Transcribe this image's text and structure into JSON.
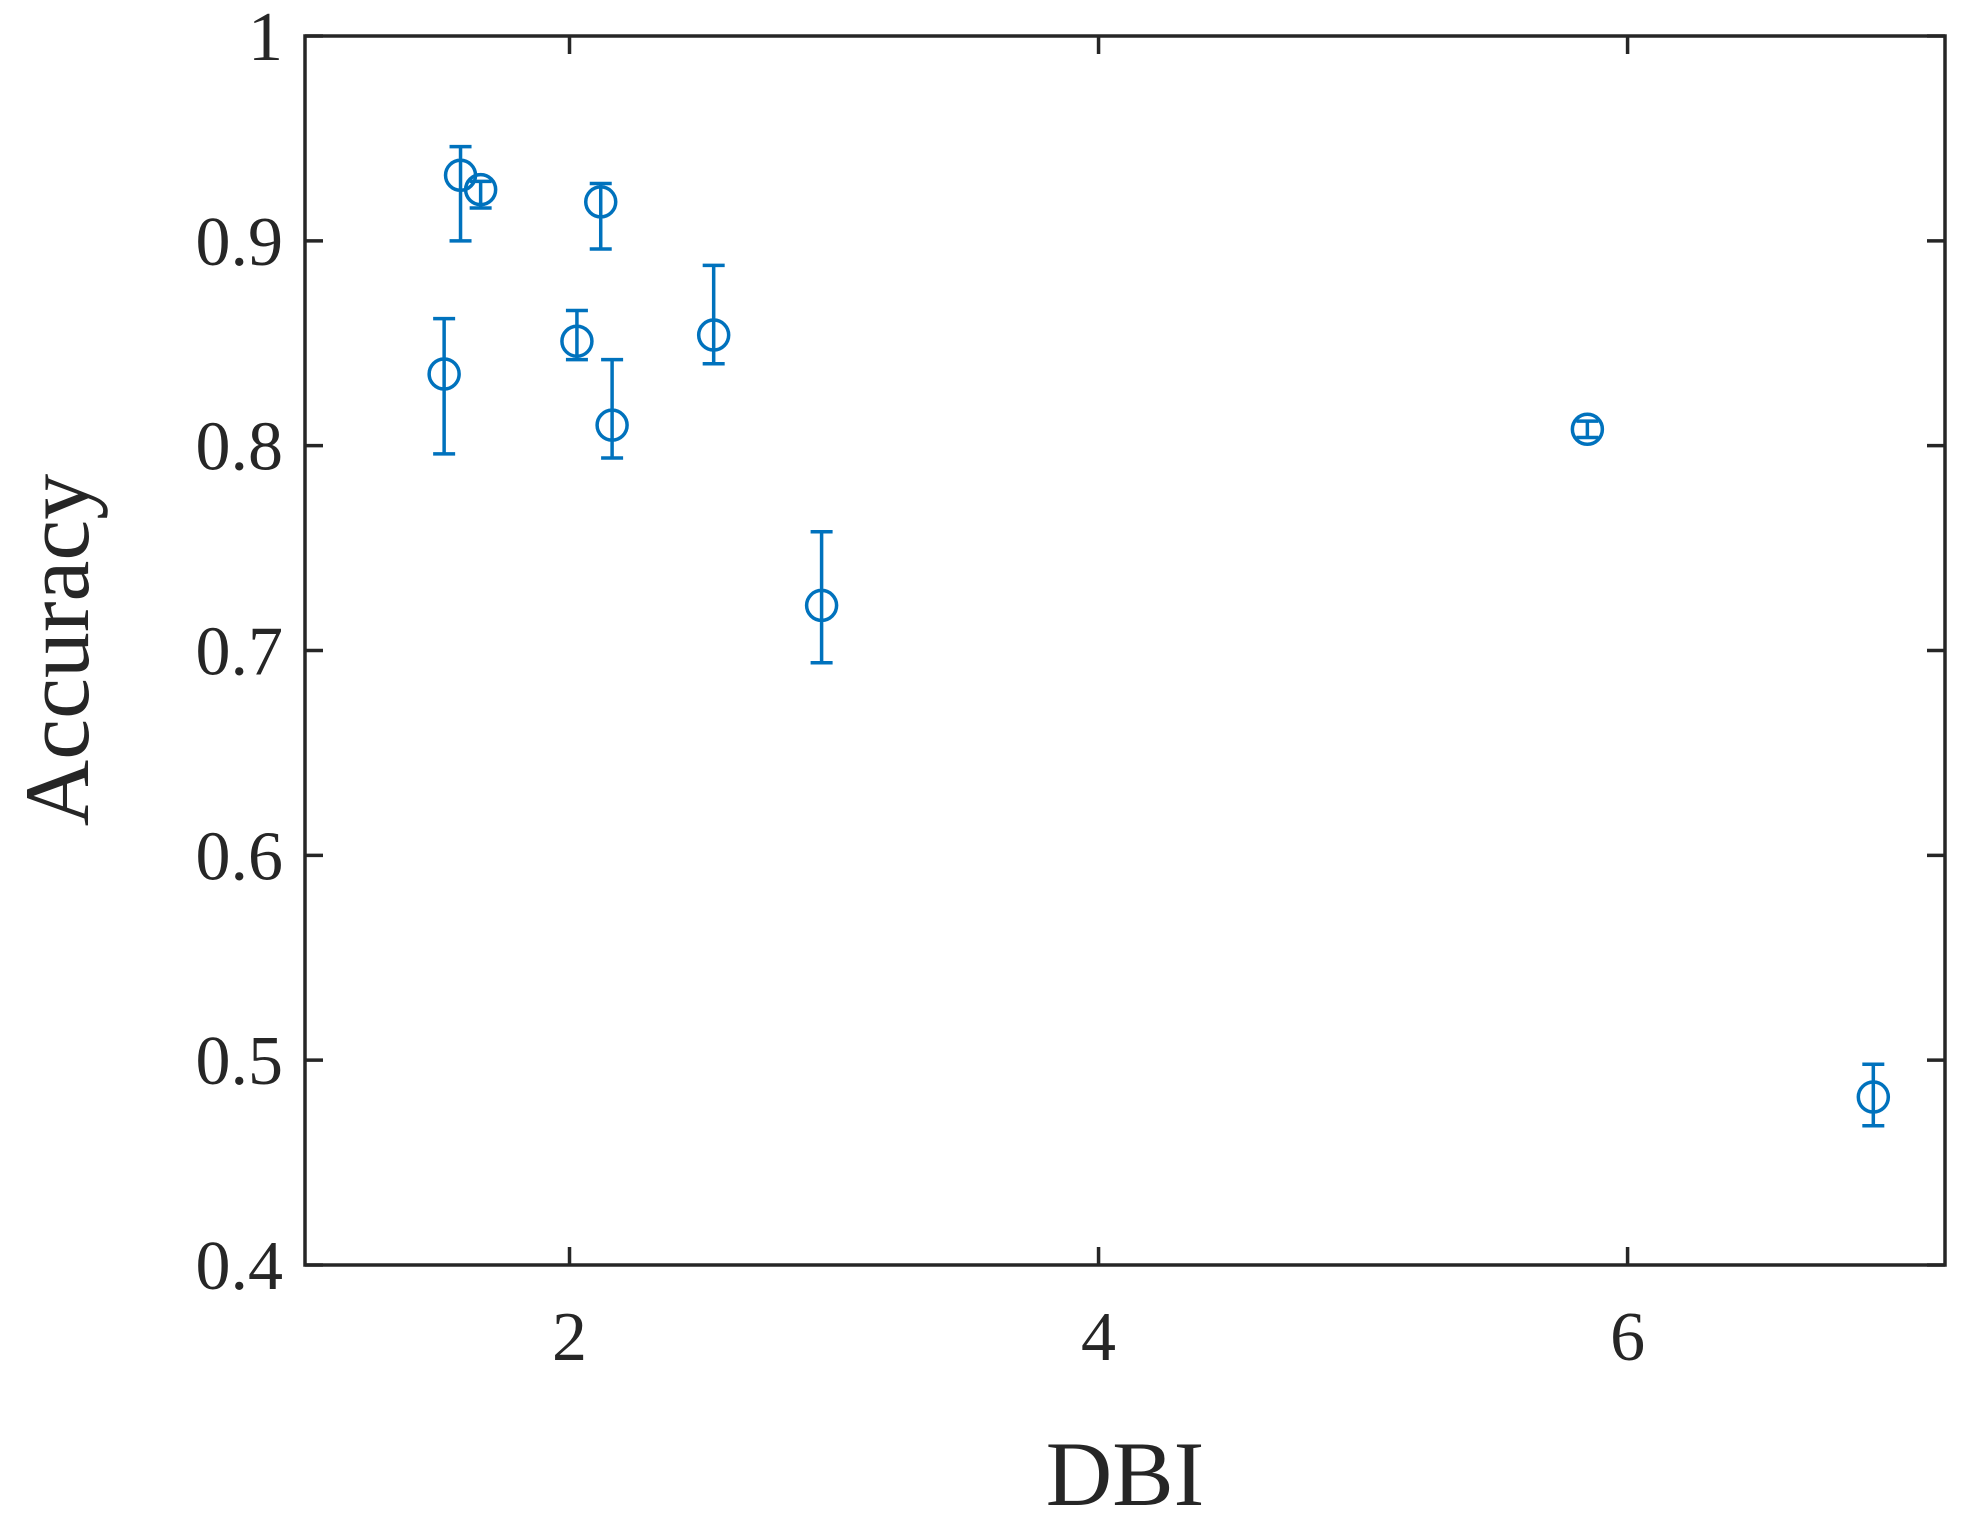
{
  "chart_data": {
    "type": "scatter",
    "xlabel": "DBI",
    "ylabel": "Accuracy",
    "xlim": [
      1,
      7.2
    ],
    "ylim": [
      0.4,
      1
    ],
    "xticks": [
      2,
      4,
      6
    ],
    "yticks": [
      0.4,
      0.5,
      0.6,
      0.7,
      0.8,
      0.9,
      1
    ],
    "series": [
      {
        "color": "#0072bd",
        "x": [
          1.526,
          1.588,
          1.664,
          2.118,
          2.028,
          2.161,
          2.545,
          2.953,
          5.848,
          6.929
        ],
        "values": [
          0.835,
          0.932,
          0.925,
          0.919,
          0.851,
          0.81,
          0.854,
          0.722,
          0.808,
          0.482
        ],
        "err_minus": [
          0.039,
          0.032,
          0.009,
          0.023,
          0.009,
          0.016,
          0.014,
          0.028,
          0.004,
          0.014
        ],
        "err_plus": [
          0.027,
          0.014,
          0.004,
          0.009,
          0.015,
          0.032,
          0.034,
          0.036,
          0.004,
          0.016
        ]
      }
    ]
  }
}
